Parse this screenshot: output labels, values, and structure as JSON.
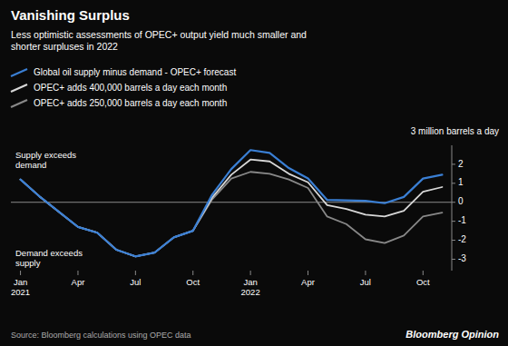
{
  "chart_data": {
    "type": "line",
    "title": "Vanishing Surplus",
    "subtitle": "Less optimistic assessments of OPEC+ output yield much smaller and\nshorter surpluses in 2022",
    "y_label": "3 million barrels a day",
    "annotations": [
      "Supply exceeds\ndemand",
      "Demand exceeds\nsupply",
      "Source: Bloomberg calculations using OPEC data",
      "Bloomberg Opinion"
    ],
    "categories": [
      "Jan\n2021",
      null,
      null,
      "Apr",
      null,
      null,
      "Jul",
      null,
      null,
      "Oct",
      null,
      null,
      "Jan\n2022",
      null,
      null,
      "Apr",
      null,
      null,
      "Jul",
      null,
      null,
      "Oct",
      null
    ],
    "series": [
      {
        "name": "Global oil supply minus demand - OPEC+ forecast",
        "color": "#3a7fd4",
        "values": [
          1.2,
          0.3,
          -0.5,
          -1.3,
          -1.6,
          -2.5,
          -2.85,
          -2.65,
          -1.85,
          -1.5,
          0.4,
          1.75,
          2.75,
          2.6,
          1.8,
          1.25,
          0.12,
          0.1,
          0.08,
          -0.05,
          0.28,
          1.25,
          1.45
        ]
      },
      {
        "name": "OPEC+ adds 400,000 barrels a day each month",
        "color": "#d8d8d8",
        "values": [
          1.2,
          0.3,
          -0.5,
          -1.3,
          -1.6,
          -2.5,
          -2.85,
          -2.65,
          -1.85,
          -1.5,
          0.25,
          1.45,
          2.25,
          2.15,
          1.5,
          1.05,
          -0.15,
          -0.35,
          -0.65,
          -0.75,
          -0.45,
          0.55,
          0.8
        ]
      },
      {
        "name": "OPEC+ adds 250,000 barrels a day each month",
        "color": "#888888",
        "values": [
          1.2,
          0.3,
          -0.5,
          -1.3,
          -1.6,
          -2.5,
          -2.85,
          -2.65,
          -1.85,
          -1.5,
          0.15,
          1.25,
          1.6,
          1.5,
          1.2,
          0.75,
          -0.75,
          -1.15,
          -1.95,
          -2.15,
          -1.75,
          -0.75,
          -0.55
        ]
      }
    ],
    "ylim": [
      -3.6,
      3.0
    ],
    "yticks": [
      -3,
      -2,
      -1,
      0,
      1,
      2
    ],
    "grid": false,
    "legend": "top-left"
  }
}
